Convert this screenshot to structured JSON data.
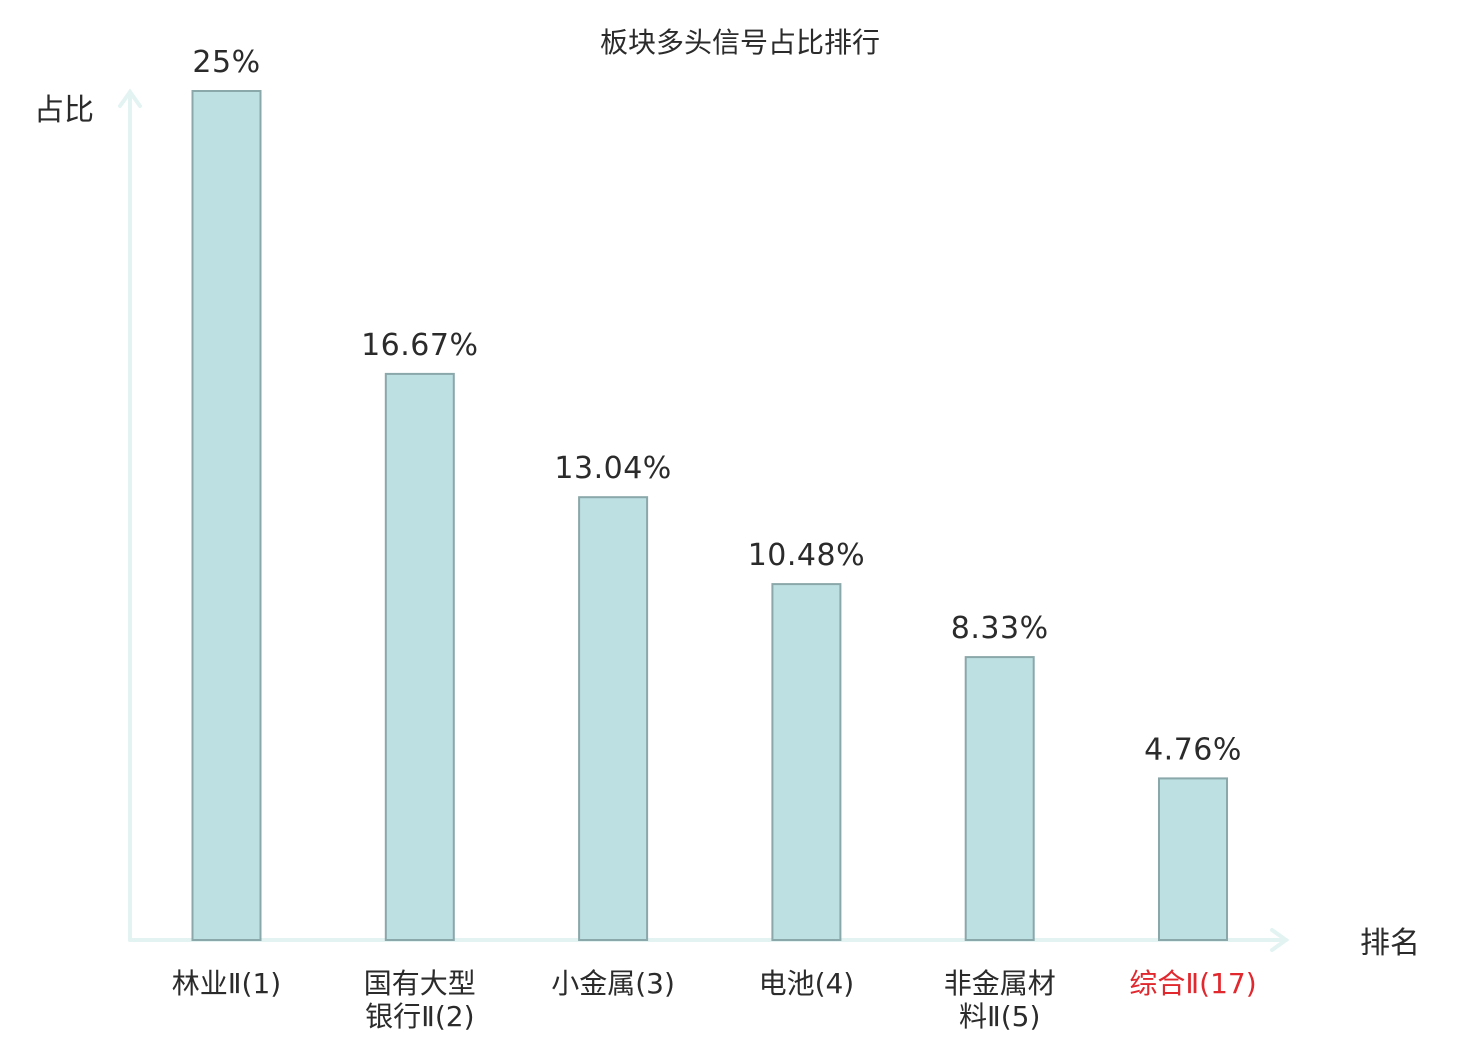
{
  "chart_data": {
    "type": "bar",
    "title": "板块多头信号占比排行",
    "ylabel": "占比",
    "xlabel": "排名",
    "categories": [
      [
        "林业Ⅱ(1)"
      ],
      [
        "国有大型",
        "银行Ⅱ(2)"
      ],
      [
        "小金属(3)"
      ],
      [
        "电池(4)"
      ],
      [
        "非金属材",
        "料Ⅱ(5)"
      ],
      [
        "综合Ⅱ(17)"
      ]
    ],
    "values": [
      25,
      16.67,
      13.04,
      10.48,
      8.33,
      4.76
    ],
    "value_labels": [
      "25%",
      "16.67%",
      "13.04%",
      "10.48%",
      "8.33%",
      "4.76%"
    ],
    "ylim": [
      0,
      25
    ],
    "grid": false,
    "highlight_index": 5
  },
  "colors": {
    "bar_fill": "#bde0e3",
    "bar_stroke": "#8aa7aa",
    "axis": "#e2f3f1",
    "text": "#2b2b2b",
    "highlight_text": "#e0282e"
  }
}
